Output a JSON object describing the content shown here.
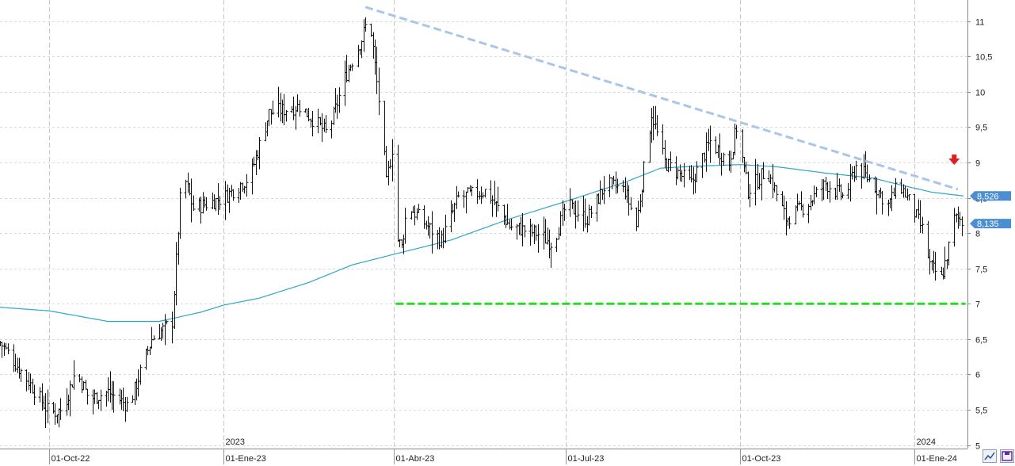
{
  "chart_data": {
    "type": "ohlc",
    "y_ticks": [
      "5",
      "5,5",
      "6",
      "6,5",
      "7",
      "7,5",
      "8",
      "8,5",
      "9",
      "9,5",
      "10",
      "10,5",
      "11"
    ],
    "ylim": [
      4.95,
      11.3
    ],
    "x_labels": [
      {
        "year": "",
        "label": "01-Oct-22",
        "date": "2022-10-01"
      },
      {
        "year": "2023",
        "label": "01-Ene-23",
        "date": "2023-01-01"
      },
      {
        "year": "",
        "label": "01-Abr-23",
        "date": "2023-04-01"
      },
      {
        "year": "",
        "label": "01-Jul-23",
        "date": "2023-07-01"
      },
      {
        "year": "",
        "label": "01-Oct-23",
        "date": "2023-10-01"
      },
      {
        "year": "2024",
        "label": "01-Ene-24",
        "date": "2024-01-01"
      }
    ],
    "xlim": [
      "2022-09-05",
      "2024-01-29"
    ],
    "price_anchors": [
      [
        "2022-09-05",
        6.45
      ],
      [
        "2022-09-20",
        5.9
      ],
      [
        "2022-10-01",
        5.45
      ],
      [
        "2022-10-08",
        5.5
      ],
      [
        "2022-10-15",
        6.05
      ],
      [
        "2022-10-22",
        5.65
      ],
      [
        "2022-11-01",
        5.75
      ],
      [
        "2022-11-12",
        5.55
      ],
      [
        "2022-11-24",
        6.5
      ],
      [
        "2022-12-05",
        6.75
      ],
      [
        "2022-12-10",
        8.9
      ],
      [
        "2022-12-16",
        8.35
      ],
      [
        "2023-01-01",
        8.5
      ],
      [
        "2023-01-15",
        8.8
      ],
      [
        "2023-01-25",
        9.7
      ],
      [
        "2023-02-10",
        9.8
      ],
      [
        "2023-02-25",
        9.4
      ],
      [
        "2023-03-06",
        10.2
      ],
      [
        "2023-03-15",
        10.75
      ],
      [
        "2023-03-19",
        11.1
      ],
      [
        "2023-03-26",
        9.4
      ],
      [
        "2023-03-28",
        8.7
      ],
      [
        "2023-03-31",
        9.2
      ],
      [
        "2023-04-01",
        8.0
      ],
      [
        "2023-04-05",
        7.8
      ],
      [
        "2023-04-08",
        8.4
      ],
      [
        "2023-04-15",
        8.2
      ],
      [
        "2023-04-26",
        7.9
      ],
      [
        "2023-05-05",
        8.5
      ],
      [
        "2023-05-20",
        8.6
      ],
      [
        "2023-06-01",
        8.1
      ],
      [
        "2023-06-15",
        8.0
      ],
      [
        "2023-06-24",
        7.85
      ],
      [
        "2023-07-01",
        8.4
      ],
      [
        "2023-07-12",
        8.2
      ],
      [
        "2023-07-22",
        8.7
      ],
      [
        "2023-08-01",
        8.6
      ],
      [
        "2023-08-07",
        8.1
      ],
      [
        "2023-08-15",
        9.7
      ],
      [
        "2023-08-22",
        9.0
      ],
      [
        "2023-09-05",
        8.7
      ],
      [
        "2023-09-15",
        9.3
      ],
      [
        "2023-09-25",
        9.0
      ],
      [
        "2023-09-29",
        9.5
      ],
      [
        "2023-10-05",
        8.6
      ],
      [
        "2023-10-15",
        8.9
      ],
      [
        "2023-10-25",
        8.2
      ],
      [
        "2023-11-05",
        8.4
      ],
      [
        "2023-11-15",
        8.7
      ],
      [
        "2023-11-25",
        8.5
      ],
      [
        "2023-12-01",
        8.95
      ],
      [
        "2023-12-10",
        8.7
      ],
      [
        "2023-12-18",
        8.4
      ],
      [
        "2023-12-24",
        8.7
      ],
      [
        "2023-12-30",
        8.4
      ],
      [
        "2024-01-05",
        8.05
      ],
      [
        "2024-01-09",
        7.55
      ],
      [
        "2024-01-15",
        7.35
      ],
      [
        "2024-01-19",
        7.8
      ],
      [
        "2024-01-22",
        8.2
      ],
      [
        "2024-01-25",
        8.2
      ],
      [
        "2024-01-27",
        8.135
      ]
    ],
    "ma_anchors": [
      [
        "2022-09-05",
        6.95
      ],
      [
        "2022-10-01",
        6.9
      ],
      [
        "2022-11-01",
        6.75
      ],
      [
        "2022-11-28",
        6.75
      ],
      [
        "2022-12-20",
        6.88
      ],
      [
        "2023-01-01",
        6.98
      ],
      [
        "2023-01-20",
        7.08
      ],
      [
        "2023-02-15",
        7.3
      ],
      [
        "2023-03-10",
        7.55
      ],
      [
        "2023-04-01",
        7.7
      ],
      [
        "2023-05-01",
        7.9
      ],
      [
        "2023-06-01",
        8.2
      ],
      [
        "2023-07-01",
        8.45
      ],
      [
        "2023-08-01",
        8.72
      ],
      [
        "2023-08-20",
        8.92
      ],
      [
        "2023-09-10",
        8.95
      ],
      [
        "2023-10-01",
        8.97
      ],
      [
        "2023-10-20",
        8.94
      ],
      [
        "2023-11-15",
        8.85
      ],
      [
        "2023-12-10",
        8.78
      ],
      [
        "2023-12-25",
        8.68
      ],
      [
        "2024-01-10",
        8.58
      ],
      [
        "2024-01-27",
        8.526
      ]
    ],
    "last_price": "8,135",
    "ma_value": "8,526",
    "resistance_line": {
      "from": [
        "2023-03-17",
        11.2
      ],
      "to": [
        "2024-01-24",
        8.62
      ],
      "color": "#a8c6e8"
    },
    "support_line": {
      "from": [
        "2023-04-02",
        7.0
      ],
      "to": [
        "2024-01-28",
        7.0
      ],
      "color": "#22dd22"
    },
    "signal_arrow": {
      "date": "2024-01-22",
      "value": 9.0,
      "direction": "down",
      "color": "#e02020"
    },
    "colors": {
      "bars": "#111111",
      "moving_average": "#2aa7c9",
      "badge": "#4b8fd1",
      "grid": "#d0d0d0"
    }
  },
  "toolbar": {
    "left_icon": "line-chart-icon",
    "right_icon": "save-icon"
  }
}
